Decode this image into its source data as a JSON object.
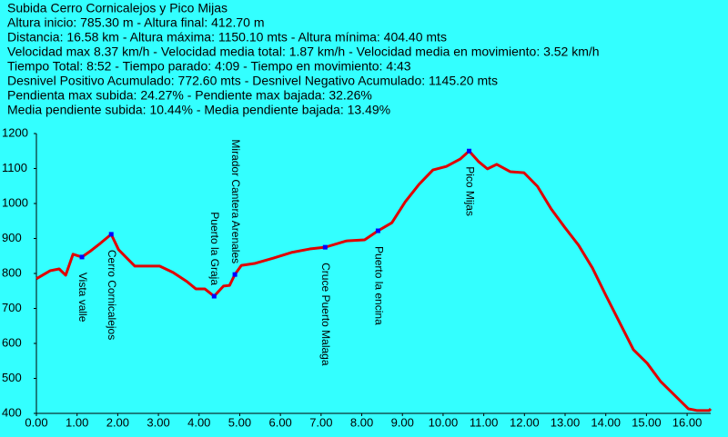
{
  "chart_data": {
    "type": "line",
    "title": "Subida Cerro Cornicalejos y Pico Mijas",
    "stats": [
      "Altura inicio: 785.30 m  - Altura final: 412.70 m",
      "Distancia: 16.58 km  -  Altura máxima: 1150.10 mts - Altura mínima: 404.40 mts",
      "Velocidad max 8.37 km/h - Velocidad media total: 1.87 km/h - Velocidad media en movimiento: 3.52 km/h",
      "Tiempo Total: 8:52  - Tiempo parado: 4:09  - Tiempo en movimiento: 4:43",
      "Desnivel Positivo Acumulado: 772.60 mts  - Desnivel Negativo Acumulado: 1145.20 mts",
      "Pendienta max subida: 24.27%  - Pendiente max bajada: 32.26%",
      "Media pendiente subida: 10.44%  - Media pendiente bajada: 13.49%"
    ],
    "x": [
      0,
      0.34,
      0.56,
      0.72,
      0.9,
      1.12,
      1.34,
      1.57,
      1.84,
      2.02,
      2.24,
      2.42,
      2.69,
      3.03,
      3.36,
      3.7,
      3.92,
      4.14,
      4.37,
      4.6,
      4.75,
      4.88,
      5.04,
      5.38,
      5.83,
      6.27,
      6.72,
      7.1,
      7.62,
      8.07,
      8.4,
      8.74,
      9.07,
      9.41,
      9.75,
      10.08,
      10.42,
      10.64,
      10.87,
      11.09,
      11.32,
      11.65,
      11.99,
      12.32,
      12.66,
      12.99,
      13.33,
      13.67,
      14.0,
      14.34,
      14.68,
      15.02,
      15.35,
      15.69,
      16.03,
      16.25,
      16.54,
      16.58
    ],
    "values": [
      785,
      808,
      813,
      795,
      855,
      847,
      865,
      886,
      912,
      868,
      842,
      821,
      821,
      821,
      803,
      777,
      756,
      756,
      735,
      764,
      766,
      797,
      823,
      829,
      844,
      860,
      870,
      875,
      893,
      896,
      922,
      945,
      1005,
      1055,
      1096,
      1106,
      1127,
      1150,
      1120,
      1099,
      1112,
      1091,
      1088,
      1049,
      984,
      932,
      881,
      816,
      738,
      660,
      582,
      543,
      491,
      452,
      413,
      408,
      408,
      413
    ],
    "color": "#e00000",
    "marker_color": "#0000ff",
    "annotations": [
      {
        "text": "Vista valle",
        "x": 1.12,
        "y": 847
      },
      {
        "text": "Cerro Cornicalejos",
        "x": 1.84,
        "y": 912
      },
      {
        "text": "Puerto la Graja",
        "x": 4.37,
        "y": 735
      },
      {
        "text": "Mirador Cantera Arenales",
        "x": 4.88,
        "y": 797
      },
      {
        "text": "Cruce Puerto Malaga",
        "x": 7.1,
        "y": 875
      },
      {
        "text": "Puerto la encina",
        "x": 8.4,
        "y": 922
      },
      {
        "text": "Pico Mijas",
        "x": 10.64,
        "y": 1150
      }
    ],
    "xlim": [
      0,
      16.58
    ],
    "ylim": [
      400,
      1200
    ],
    "xticks": [
      {
        "value": 0,
        "label": "0.00"
      },
      {
        "value": 1,
        "label": "1.00"
      },
      {
        "value": 2,
        "label": "2.00"
      },
      {
        "value": 3,
        "label": "3.00"
      },
      {
        "value": 4,
        "label": "4.00"
      },
      {
        "value": 5,
        "label": "5.00"
      },
      {
        "value": 6,
        "label": "6.00"
      },
      {
        "value": 7,
        "label": "7.00"
      },
      {
        "value": 8,
        "label": "8.00"
      },
      {
        "value": 9,
        "label": "9.00"
      },
      {
        "value": 10,
        "label": "10.00"
      },
      {
        "value": 11,
        "label": "11.00"
      },
      {
        "value": 12,
        "label": "12.00"
      },
      {
        "value": 13,
        "label": "13.00"
      },
      {
        "value": 14,
        "label": "14.00"
      },
      {
        "value": 15,
        "label": "15.00"
      },
      {
        "value": 16,
        "label": "16.00"
      }
    ],
    "yticks": [
      400,
      500,
      600,
      700,
      800,
      900,
      1000,
      1100,
      1200
    ],
    "grid": false
  }
}
